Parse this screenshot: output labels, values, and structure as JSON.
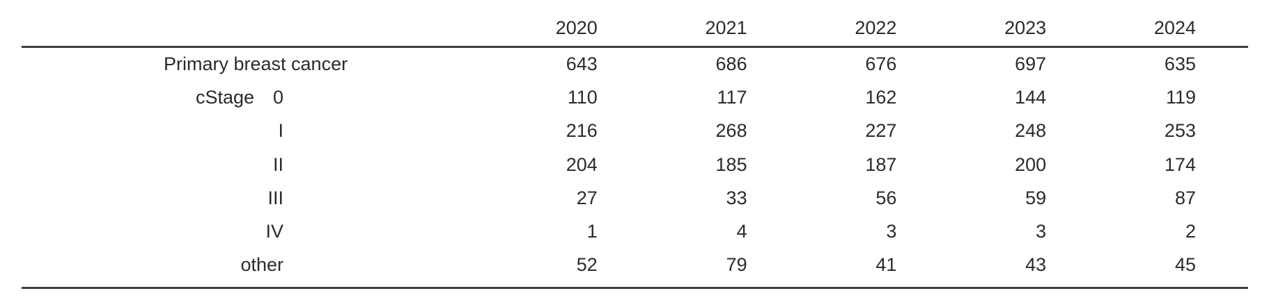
{
  "table": {
    "columns": [
      "2020",
      "2021",
      "2022",
      "2023",
      "2024"
    ],
    "rows": [
      {
        "prefix": "",
        "label": "Primary breast cancer",
        "values": [
          "643",
          "686",
          "676",
          "697",
          "635"
        ]
      },
      {
        "prefix": "cStage",
        "label": "0",
        "values": [
          "110",
          "117",
          "162",
          "144",
          "119"
        ]
      },
      {
        "prefix": "",
        "label": "I",
        "values": [
          "216",
          "268",
          "227",
          "248",
          "253"
        ]
      },
      {
        "prefix": "",
        "label": "II",
        "values": [
          "204",
          "185",
          "187",
          "200",
          "174"
        ]
      },
      {
        "prefix": "",
        "label": "III",
        "values": [
          "27",
          "33",
          "56",
          "59",
          "87"
        ]
      },
      {
        "prefix": "",
        "label": "IV",
        "values": [
          "1",
          "4",
          "3",
          "3",
          "2"
        ]
      },
      {
        "prefix": "",
        "label": "other",
        "values": [
          "52",
          "79",
          "41",
          "43",
          "45"
        ]
      }
    ],
    "colors": {
      "text": "#2b2b2b",
      "rule": "#3d3d3d",
      "background": "#ffffff"
    }
  }
}
